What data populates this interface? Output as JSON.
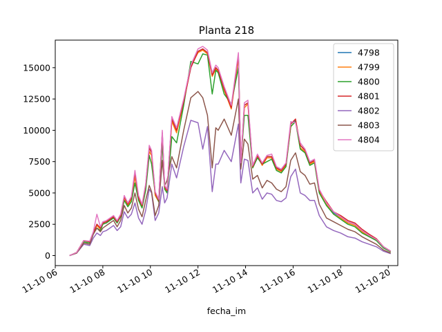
{
  "chart_data": {
    "type": "line",
    "title": "Planta 218",
    "xlabel": "fecha_im",
    "ylabel": "",
    "xlim": [
      6.0,
      20.4
    ],
    "ylim": [
      -800,
      17200
    ],
    "x_ticks": [
      {
        "value": 6,
        "label": "11-10 06"
      },
      {
        "value": 8,
        "label": "11-10 08"
      },
      {
        "value": 10,
        "label": "11-10 10"
      },
      {
        "value": 12,
        "label": "11-10 12"
      },
      {
        "value": 14,
        "label": "11-10 14"
      },
      {
        "value": 16,
        "label": "11-10 16"
      },
      {
        "value": 18,
        "label": "11-10 18"
      },
      {
        "value": 20,
        "label": "11-10 20"
      }
    ],
    "y_ticks": [
      {
        "value": 0,
        "label": "0"
      },
      {
        "value": 2500,
        "label": "2500"
      },
      {
        "value": 5000,
        "label": "5000"
      },
      {
        "value": 7500,
        "label": "7500"
      },
      {
        "value": 10000,
        "label": "10000"
      },
      {
        "value": 12500,
        "label": "12500"
      },
      {
        "value": 15000,
        "label": "15000"
      }
    ],
    "grid": false,
    "legend_position": "top-right",
    "x": [
      6.6,
      6.9,
      7.2,
      7.45,
      7.6,
      7.75,
      7.9,
      8.0,
      8.15,
      8.3,
      8.45,
      8.6,
      8.75,
      8.9,
      9.05,
      9.2,
      9.35,
      9.5,
      9.65,
      9.8,
      9.95,
      10.05,
      10.2,
      10.35,
      10.5,
      10.6,
      10.7,
      10.9,
      11.1,
      11.4,
      11.7,
      12.0,
      12.2,
      12.4,
      12.6,
      12.75,
      12.85,
      13.1,
      13.4,
      13.7,
      13.8,
      13.95,
      14.1,
      14.3,
      14.5,
      14.7,
      14.9,
      15.1,
      15.3,
      15.5,
      15.7,
      15.9,
      16.1,
      16.3,
      16.5,
      16.7,
      16.9,
      17.1,
      17.4,
      17.7,
      18.0,
      18.3,
      18.6,
      18.9,
      19.2,
      19.5,
      19.8,
      20.1
    ],
    "series": [
      {
        "name": "4798",
        "color": "#1f77b4",
        "values": [
          0,
          250,
          1200,
          1100,
          1800,
          2500,
          2200,
          2600,
          2700,
          2900,
          3100,
          2700,
          3200,
          4700,
          4100,
          4600,
          6600,
          4600,
          4000,
          5600,
          8600,
          8200,
          5000,
          4400,
          9800,
          5500,
          5200,
          10900,
          10000,
          12300,
          15000,
          16300,
          16500,
          16200,
          14400,
          15000,
          14800,
          13300,
          11800,
          16000,
          7300,
          12000,
          12200,
          7100,
          8000,
          7300,
          7900,
          7900,
          7000,
          6800,
          7300,
          10500,
          10800,
          8800,
          8400,
          7400,
          7600,
          5200,
          4200,
          3400,
          3100,
          2700,
          2500,
          2000,
          1600,
          1300,
          700,
          350
        ]
      },
      {
        "name": "4799",
        "color": "#ff7f0e",
        "values": [
          0,
          250,
          1200,
          1100,
          1800,
          2400,
          2100,
          2600,
          2700,
          2900,
          3000,
          2700,
          3200,
          4500,
          4000,
          4500,
          6300,
          4500,
          3900,
          5400,
          8300,
          8000,
          4800,
          4300,
          9500,
          5400,
          5100,
          10700,
          9800,
          12200,
          15100,
          16200,
          16400,
          16100,
          14300,
          14900,
          14700,
          13200,
          11700,
          15800,
          7200,
          11800,
          12100,
          7000,
          7900,
          7200,
          7800,
          7800,
          6900,
          6700,
          7200,
          10300,
          10700,
          8600,
          8300,
          7300,
          7500,
          5100,
          4100,
          3300,
          3000,
          2600,
          2400,
          1900,
          1500,
          1250,
          650,
          300
        ]
      },
      {
        "name": "4800",
        "color": "#2ca02c",
        "values": [
          0,
          250,
          1100,
          1000,
          1800,
          2200,
          2000,
          2500,
          2600,
          2800,
          3000,
          2600,
          3100,
          4400,
          3900,
          4300,
          5800,
          4400,
          3800,
          5200,
          8000,
          7300,
          5000,
          4300,
          9000,
          5300,
          5000,
          9500,
          9000,
          12000,
          15500,
          15300,
          16100,
          16000,
          12900,
          14800,
          14600,
          12900,
          12100,
          15000,
          7500,
          11200,
          11200,
          7000,
          7800,
          7300,
          7500,
          7700,
          6800,
          6600,
          7100,
          10300,
          10700,
          8500,
          8200,
          7200,
          7400,
          5000,
          4000,
          3300,
          2900,
          2500,
          2300,
          1800,
          1500,
          1200,
          600,
          300
        ]
      },
      {
        "name": "4801",
        "color": "#d62728",
        "values": [
          0,
          250,
          1200,
          1100,
          1800,
          2500,
          2200,
          2600,
          2700,
          2900,
          3100,
          2700,
          3200,
          4700,
          4100,
          4600,
          6600,
          4600,
          4000,
          5600,
          8600,
          8200,
          5000,
          4400,
          9800,
          5500,
          5200,
          10900,
          10000,
          12300,
          15000,
          16300,
          16500,
          16200,
          14400,
          15000,
          14800,
          13300,
          11800,
          16000,
          7300,
          12000,
          12200,
          7100,
          8000,
          7300,
          7900,
          7900,
          7000,
          6800,
          7300,
          10500,
          10900,
          8800,
          8400,
          7400,
          7600,
          5200,
          4300,
          3500,
          3200,
          2800,
          2600,
          2100,
          1700,
          1350,
          700,
          350
        ]
      },
      {
        "name": "4802",
        "color": "#9467bd",
        "values": [
          0,
          200,
          900,
          800,
          1400,
          1800,
          1600,
          1900,
          2000,
          2200,
          2400,
          2000,
          2300,
          3500,
          3000,
          3300,
          4200,
          3000,
          2500,
          3600,
          5300,
          5000,
          2800,
          3400,
          5500,
          4200,
          4600,
          7300,
          6200,
          8700,
          10800,
          10600,
          8500,
          10300,
          5100,
          7300,
          7300,
          8400,
          7500,
          10500,
          5800,
          7700,
          7600,
          5000,
          5400,
          4500,
          5000,
          4900,
          4400,
          4300,
          4600,
          6300,
          6900,
          5000,
          4800,
          4400,
          4400,
          3200,
          2300,
          2000,
          1800,
          1500,
          1400,
          1100,
          900,
          700,
          350,
          150
        ]
      },
      {
        "name": "4803",
        "color": "#8c564b",
        "values": [
          0,
          200,
          1000,
          900,
          1700,
          2200,
          1900,
          2200,
          2400,
          2600,
          2800,
          2300,
          2800,
          4000,
          3400,
          3800,
          5000,
          3700,
          3100,
          4400,
          5600,
          5100,
          3200,
          4000,
          7600,
          5600,
          6000,
          7900,
          7000,
          10000,
          12600,
          13100,
          12600,
          11200,
          7000,
          10200,
          10000,
          10900,
          9600,
          12500,
          6900,
          9300,
          8900,
          6100,
          6400,
          5400,
          6000,
          5800,
          5300,
          5100,
          5500,
          7600,
          8200,
          6700,
          6400,
          5700,
          5800,
          4100,
          3000,
          2700,
          2400,
          2100,
          1900,
          1500,
          1200,
          900,
          450,
          200
        ]
      },
      {
        "name": "4804",
        "color": "#e377c2",
        "values": [
          0,
          250,
          1200,
          1150,
          1900,
          3300,
          2300,
          2700,
          2800,
          3000,
          3200,
          2800,
          3300,
          4800,
          4200,
          4700,
          6800,
          4800,
          4100,
          5700,
          8800,
          8400,
          5100,
          4500,
          10000,
          5600,
          5300,
          11100,
          10200,
          12500,
          15200,
          16500,
          16700,
          16400,
          14600,
          15200,
          15000,
          13500,
          12000,
          16200,
          7400,
          12200,
          12400,
          7200,
          8100,
          7400,
          8000,
          8100,
          7100,
          6900,
          7400,
          10700,
          10600,
          9000,
          8500,
          7500,
          7700,
          5300,
          4200,
          3500,
          3100,
          2700,
          2500,
          2000,
          1600,
          1300,
          700,
          350
        ]
      }
    ]
  }
}
